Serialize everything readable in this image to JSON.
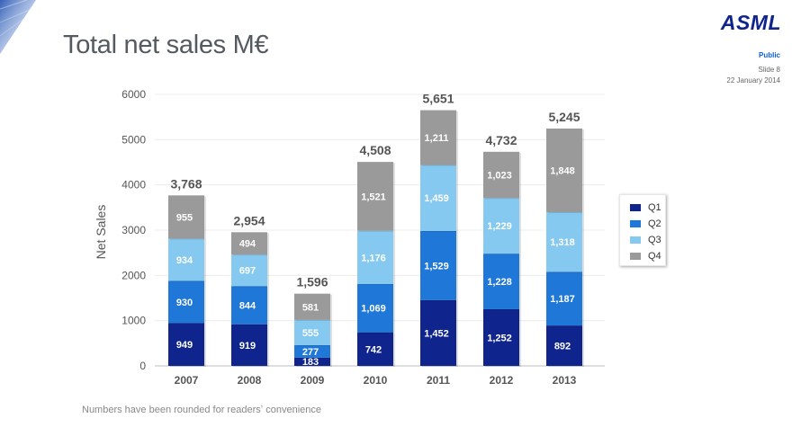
{
  "header": {
    "title": "Total net sales M€",
    "logo": "ASML",
    "classification": "Public",
    "slide": "Slide 8",
    "date": "22 January 2014"
  },
  "footnote": "Numbers have been rounded for readersʼ convenience",
  "colors": {
    "q1": "#10248e",
    "q2": "#1f78d8",
    "q3": "#85c8f0",
    "q4": "#9a9a9a",
    "title": "#555a60",
    "logo": "#10248e"
  },
  "chart_data": {
    "type": "bar",
    "stacked": true,
    "categories": [
      "2007",
      "2008",
      "2009",
      "2010",
      "2011",
      "2012",
      "2013"
    ],
    "series": [
      {
        "name": "Q1",
        "values": [
          949,
          919,
          183,
          742,
          1452,
          1252,
          892
        ]
      },
      {
        "name": "Q2",
        "values": [
          930,
          844,
          277,
          1069,
          1529,
          1228,
          1187
        ]
      },
      {
        "name": "Q3",
        "values": [
          934,
          697,
          555,
          1176,
          1459,
          1229,
          1318
        ]
      },
      {
        "name": "Q4",
        "values": [
          955,
          494,
          581,
          1521,
          1211,
          1023,
          1848
        ]
      }
    ],
    "totals": [
      "3,768",
      "2,954",
      "1,596",
      "4,508",
      "5,651",
      "4,732",
      "5,245"
    ],
    "labels": [
      [
        "949",
        "919",
        "183",
        "742",
        "1,452",
        "1,252",
        "892"
      ],
      [
        "930",
        "844",
        "277",
        "1,069",
        "1,529",
        "1,228",
        "1,187"
      ],
      [
        "934",
        "697",
        "555",
        "1,176",
        "1,459",
        "1,229",
        "1,318"
      ],
      [
        "955",
        "494",
        "581",
        "1,521",
        "1,211",
        "1,023",
        "1,848"
      ]
    ],
    "ylabel": "Net Sales",
    "yticks": [
      "0",
      "1000",
      "2000",
      "3000",
      "4000",
      "5000",
      "6000"
    ],
    "ylim": [
      0,
      6000
    ],
    "legend_position": "right",
    "grid": true
  }
}
